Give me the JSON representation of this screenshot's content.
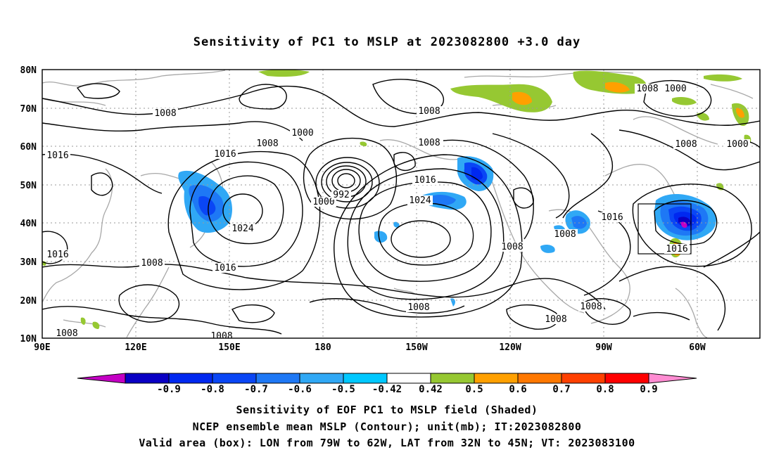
{
  "title": "Sensitivity of PC1 to MSLP at 2023082800 +3.0 day",
  "map": {
    "lat_labels": [
      "80N",
      "70N",
      "60N",
      "50N",
      "40N",
      "30N",
      "20N",
      "10N"
    ],
    "lon_labels": [
      "90E",
      "120E",
      "150E",
      "180",
      "150W",
      "120W",
      "90W",
      "60W"
    ],
    "lon_range": [
      90,
      330
    ],
    "lat_range": [
      10,
      80
    ],
    "grid": "dotted",
    "contour_labels": [
      "1008",
      "1000",
      "1016",
      "1008",
      "1000",
      "1008",
      "1016",
      "1016",
      "1008",
      "1000",
      "1008",
      "992",
      "1000",
      "1024",
      "1016",
      "1024",
      "1016",
      "1008",
      "1008",
      "1016",
      "1008",
      "1008",
      "1008",
      "1016",
      "1008",
      "1008",
      "1008",
      "1008"
    ],
    "valid_box": {
      "lon": [
        -79,
        -62
      ],
      "lat": [
        32,
        45
      ]
    },
    "land_color": "#a8a8a8",
    "contour_color": "#000000"
  },
  "colorbar": {
    "labels": [
      "-0.9",
      "-0.8",
      "-0.7",
      "-0.6",
      "-0.5",
      "-0.42",
      "0.42",
      "0.5",
      "0.6",
      "0.7",
      "0.8",
      "0.9"
    ],
    "colors": [
      "#c400c4",
      "#0a00c4",
      "#0028f0",
      "#0a46f5",
      "#1e78f5",
      "#30a8f5",
      "#00c8ff",
      "#ffffff",
      "#96c832",
      "#ffa000",
      "#ff7800",
      "#ff4000",
      "#ff0000",
      "#ff8cd2"
    ]
  },
  "captions": {
    "line1": "Sensitivity of EOF PC1 to MSLP field (Shaded)",
    "line2": "NCEP ensemble mean MSLP (Contour); unit(mb); IT:2023082800",
    "line3": "Valid area (box): LON from 79W to 62W, LAT from 32N to 45N; VT: 2023083100"
  }
}
